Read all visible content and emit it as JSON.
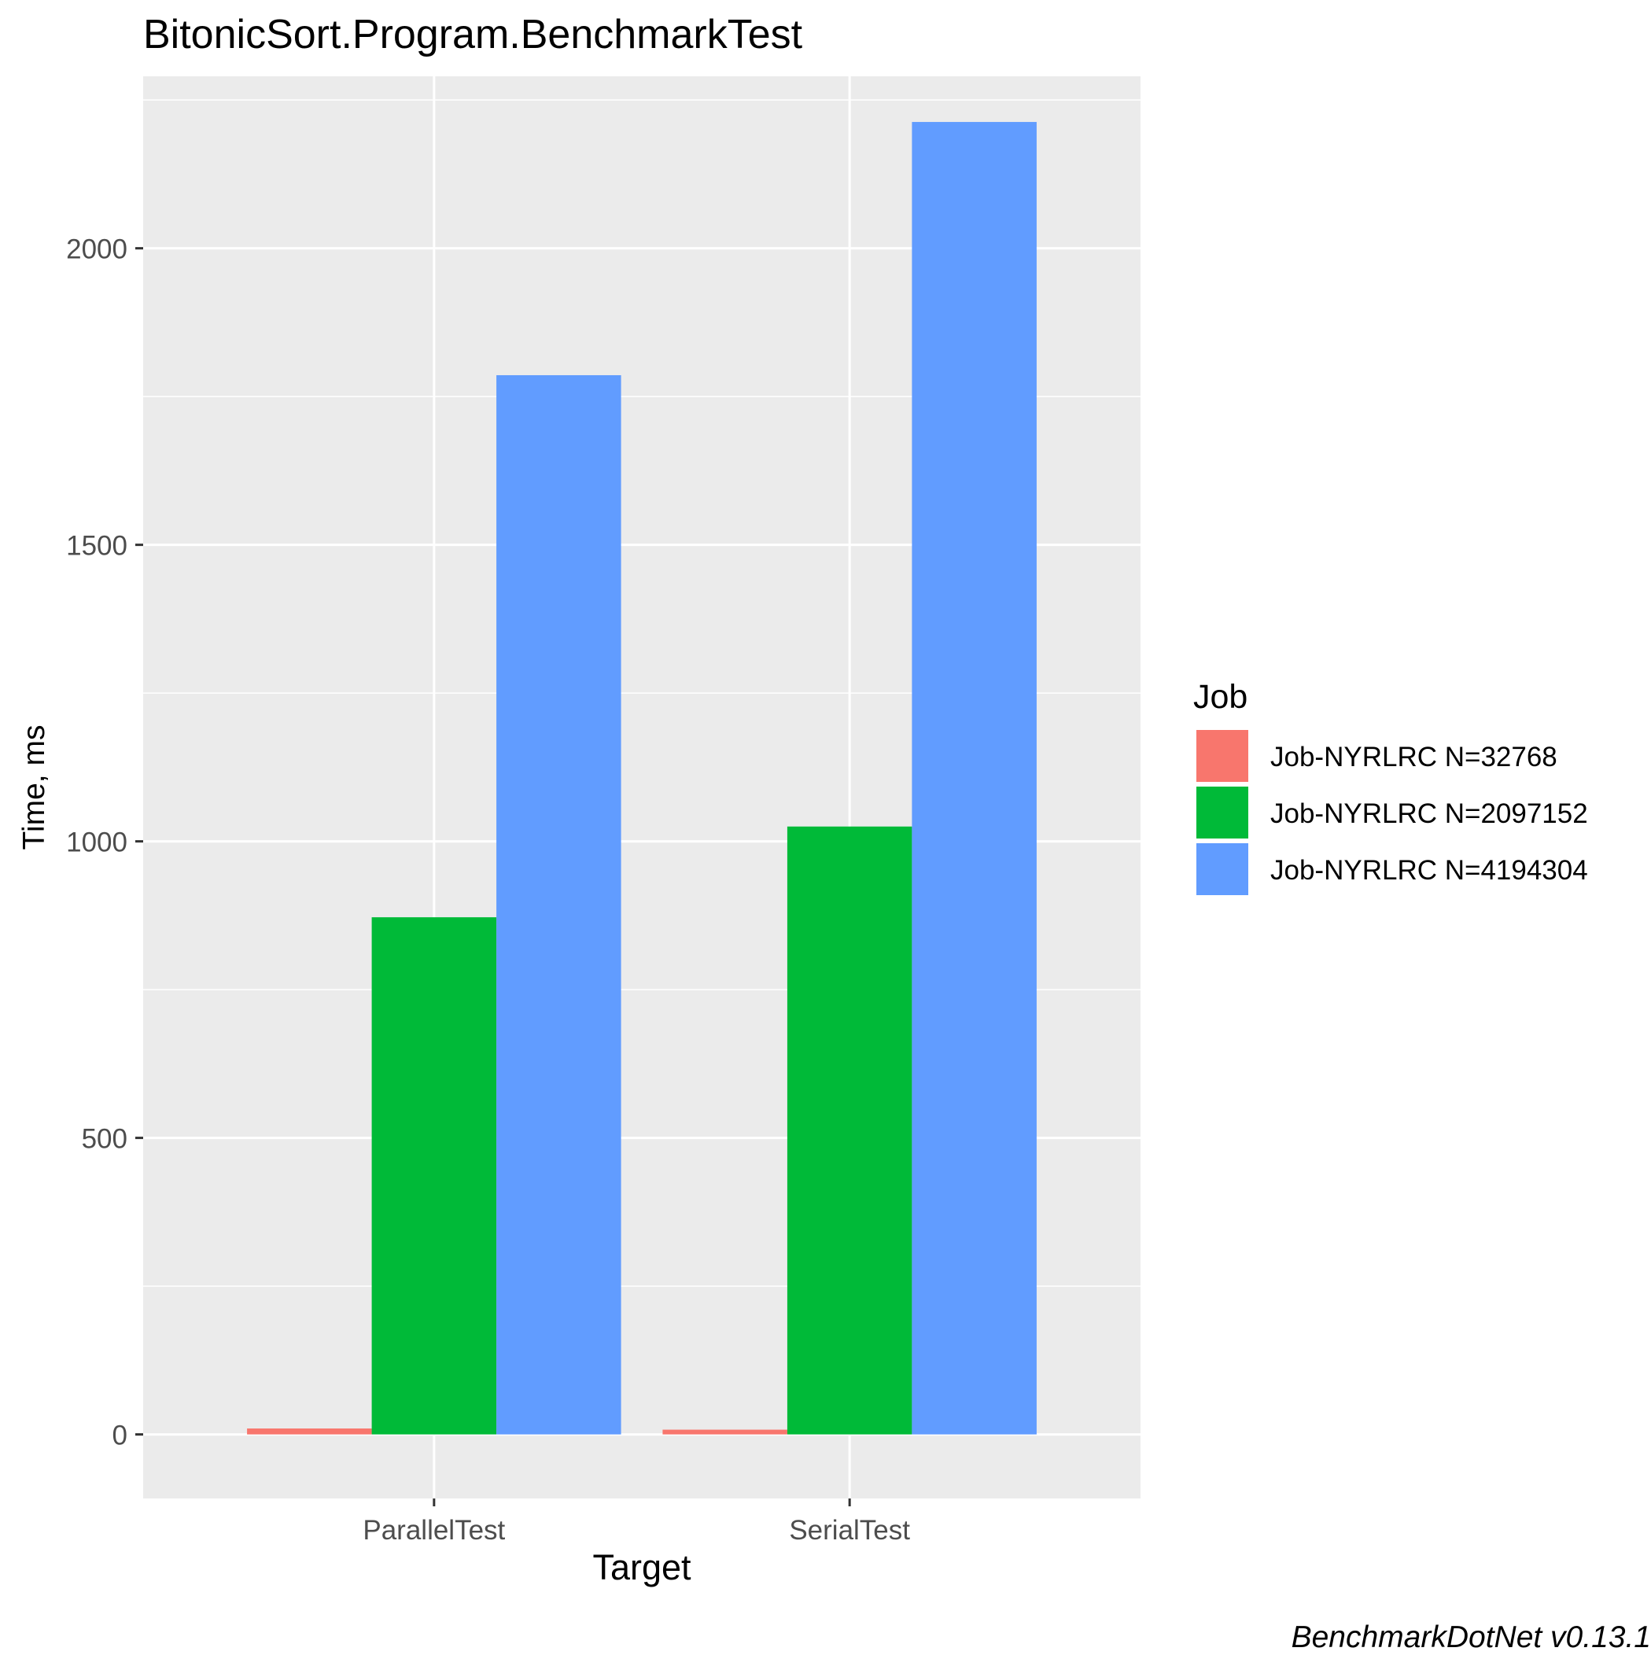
{
  "chart_data": {
    "type": "bar",
    "title": "BitonicSort.Program.BenchmarkTest",
    "xlabel": "Target",
    "ylabel": "Time, ms",
    "caption": "BenchmarkDotNet v0.13.1",
    "categories": [
      "ParallelTest",
      "SerialTest"
    ],
    "ylim": [
      -108,
      2290
    ],
    "yticks": [
      0,
      500,
      1000,
      1500,
      2000
    ],
    "ytick_labels": [
      "0",
      "500",
      "1000",
      "1500",
      "2000"
    ],
    "grid": true,
    "legend": {
      "title": "Job",
      "position": "right"
    },
    "series": [
      {
        "name": "Job-NYRLRC N=32768",
        "color": "#F8766D",
        "values": [
          10,
          8
        ]
      },
      {
        "name": "Job-NYRLRC N=2097152",
        "color": "#00BA38",
        "values": [
          872,
          1025
        ]
      },
      {
        "name": "Job-NYRLRC N=4194304",
        "color": "#619CFF",
        "values": [
          1786,
          2213
        ]
      }
    ]
  }
}
